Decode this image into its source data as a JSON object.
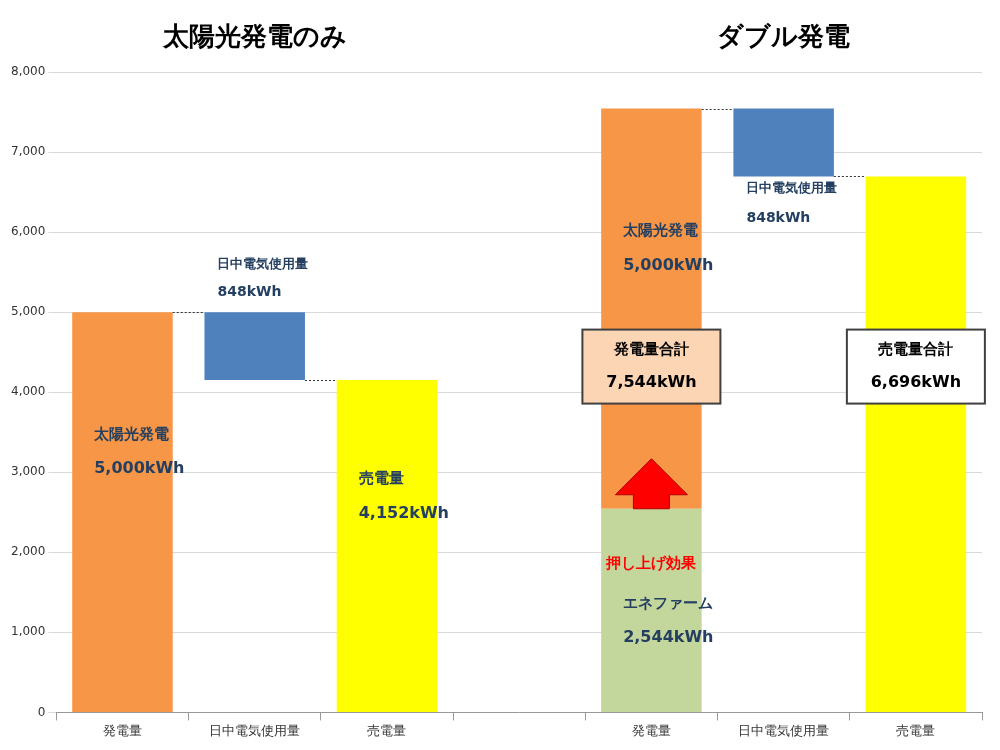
{
  "chart_data": {
    "type": "bar",
    "stacked": true,
    "data_labels": true,
    "grid": true,
    "titles": [
      "太陽光発電のみ",
      "ダブル発電"
    ],
    "categories": [
      "発電量",
      "日中電気使用量",
      "売電量",
      null,
      "発電量",
      "日中電気使用量",
      "売電量"
    ],
    "ylim": [
      0,
      8000
    ],
    "yticks": [
      0,
      {
        "value": 1000,
        "label": "1,000"
      },
      {
        "value": 2000,
        "label": "2,000"
      },
      {
        "value": 3000,
        "label": "3,000"
      },
      {
        "value": 4000,
        "label": "4,000"
      },
      {
        "value": 5000,
        "label": "5,000"
      },
      {
        "value": 6000,
        "label": "6,000"
      },
      {
        "value": 7000,
        "label": "7,000"
      },
      {
        "value": 8000,
        "label": "8,000"
      }
    ],
    "series": [
      {
        "name": "エネファーム",
        "color": "#C3D69B",
        "values": [
          null,
          null,
          null,
          null,
          2544,
          null,
          null
        ],
        "value_labels": [
          null,
          null,
          null,
          null,
          "2,544kWh",
          null,
          null
        ]
      },
      {
        "name": "太陽光発電",
        "color": "#F79646",
        "values": [
          5000,
          null,
          null,
          null,
          5000,
          null,
          null
        ],
        "value_labels": [
          "5,000kWh",
          null,
          null,
          null,
          "5,000kWh",
          null,
          null
        ]
      },
      {
        "name": "日中電気使用量",
        "color": "#4F81BD",
        "type": "waterfall",
        "values": [
          null,
          848,
          null,
          null,
          null,
          848,
          null
        ],
        "value_labels": [
          null,
          "848kWh",
          null,
          null,
          null,
          "848kWh",
          null
        ]
      },
      {
        "name": "売電量",
        "color": "#FFFF00",
        "values": [
          null,
          null,
          4152,
          null,
          null,
          null,
          6696
        ],
        "value_labels": [
          null,
          null,
          "4,152kWh",
          null,
          null,
          null,
          null
        ]
      }
    ],
    "annotations": [
      {
        "text": "押し上げ効果",
        "color": "#FF0000"
      },
      {
        "text": "発電量合計",
        "label": "7,544kWh",
        "value": 7544,
        "color": "#FCD5B5"
      },
      {
        "text": "売電量合計",
        "label": "6,696kWh",
        "value": 6696,
        "color": "#FFFFFF"
      }
    ]
  }
}
